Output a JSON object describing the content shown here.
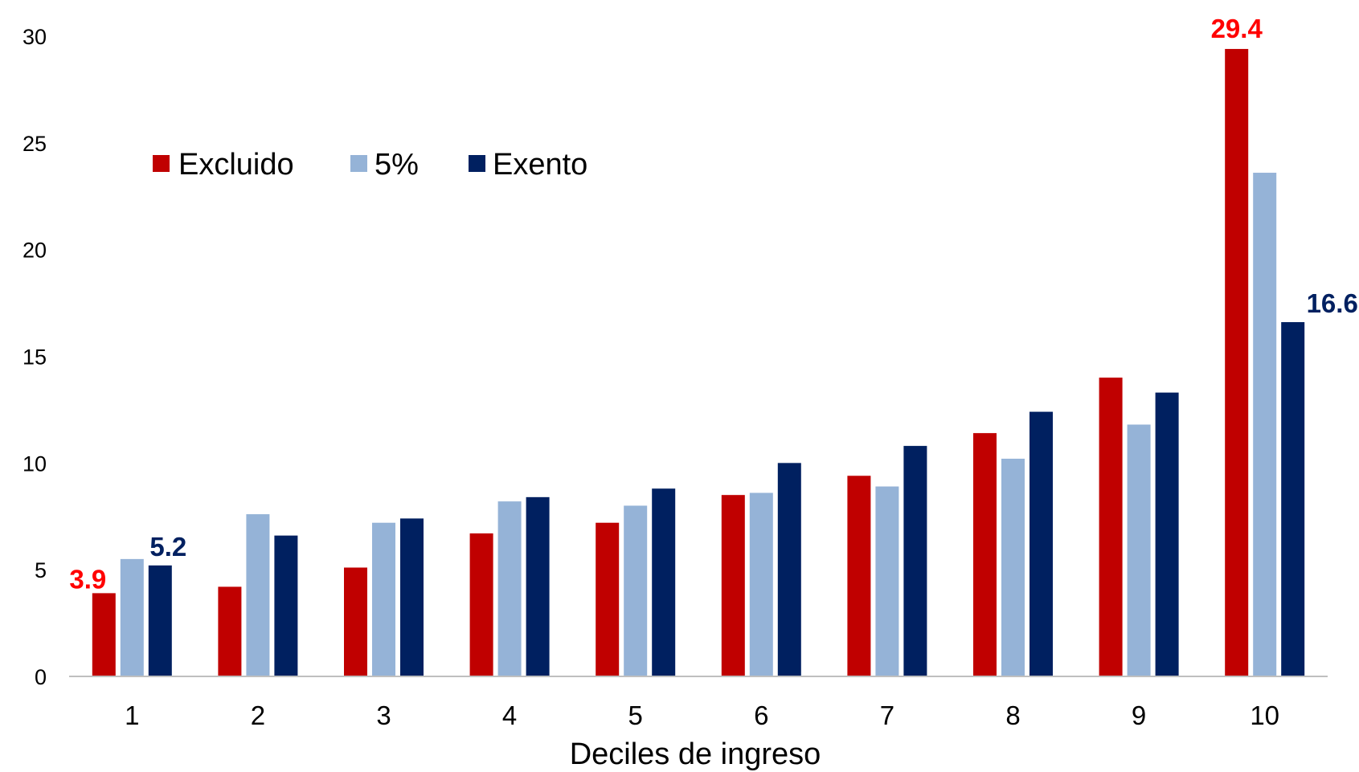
{
  "chart_data": {
    "type": "bar",
    "title": "",
    "xlabel": "Deciles de ingreso",
    "ylabel": "",
    "ylim": [
      0,
      30
    ],
    "yticks": [
      0,
      5,
      10,
      15,
      20,
      25,
      30
    ],
    "grid": false,
    "legend_position": "top-left",
    "categories": [
      "1",
      "2",
      "3",
      "4",
      "5",
      "6",
      "7",
      "8",
      "9",
      "10"
    ],
    "series": [
      {
        "name": "Excluido",
        "color": "#C00000",
        "values": [
          3.9,
          4.2,
          5.1,
          6.7,
          7.2,
          8.5,
          9.4,
          11.4,
          14.0,
          29.4
        ]
      },
      {
        "name": "5%",
        "color": "#95B3D7",
        "values": [
          5.5,
          7.6,
          7.2,
          8.2,
          8.0,
          8.6,
          8.9,
          10.2,
          11.8,
          23.6
        ]
      },
      {
        "name": "Exento",
        "color": "#002060",
        "values": [
          5.2,
          6.6,
          7.4,
          8.4,
          8.8,
          10.0,
          10.8,
          12.4,
          13.3,
          16.6
        ]
      }
    ],
    "data_labels": [
      {
        "series": 0,
        "category": 0,
        "text": "3.9",
        "color": "#FF0000"
      },
      {
        "series": 2,
        "category": 0,
        "text": "5.2",
        "color": "#002060"
      },
      {
        "series": 0,
        "category": 9,
        "text": "29.4",
        "color": "#FF0000"
      },
      {
        "series": 2,
        "category": 9,
        "text": "16.6",
        "color": "#002060"
      }
    ],
    "axis_color": "#BFBFBF"
  }
}
